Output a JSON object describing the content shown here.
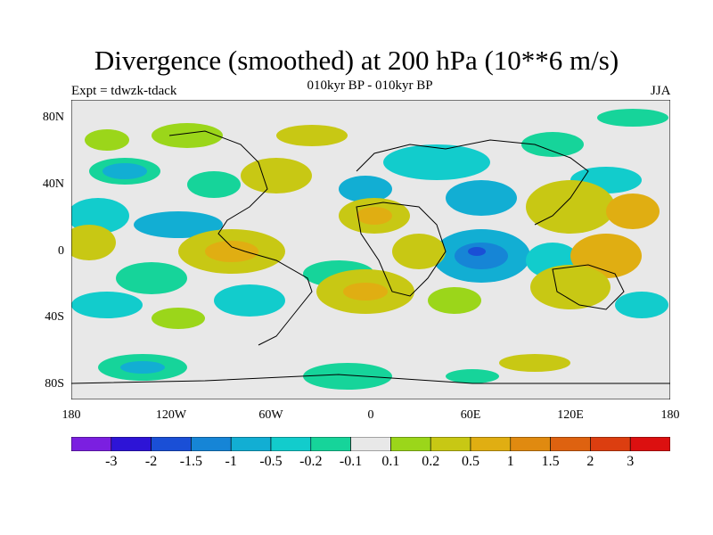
{
  "header": {
    "title": "Divergence (smoothed) at 200 hPa (10**6 m/s)",
    "subtitle": "010kyr BP - 010kyr BP",
    "left_label": "Expt = tdwzk-tdack",
    "right_label": "JJA"
  },
  "axes": {
    "lat_labels": [
      "80N",
      "40N",
      "0",
      "40S",
      "80S"
    ],
    "lon_labels": [
      "180",
      "120W",
      "60W",
      "0",
      "60E",
      "120E",
      "180"
    ]
  },
  "colorbar": {
    "colors": [
      "#7b1fe0",
      "#2d14d6",
      "#1a4fd6",
      "#1685d6",
      "#12aed3",
      "#12cccc",
      "#16d49a",
      "#e8e8e8",
      "#9bd61a",
      "#c8c814",
      "#e0ae12",
      "#e08a10",
      "#de6210",
      "#dc3e10",
      "#dc1010"
    ],
    "labels": [
      "-3",
      "-2",
      "-1.5",
      "-1",
      "-0.5",
      "-0.2",
      "-0.1",
      "0.1",
      "0.2",
      "0.5",
      "1",
      "1.5",
      "2",
      "3"
    ]
  },
  "legend_colors": {
    "land_line": "#000000",
    "neutral": "#e8e8e8"
  }
}
